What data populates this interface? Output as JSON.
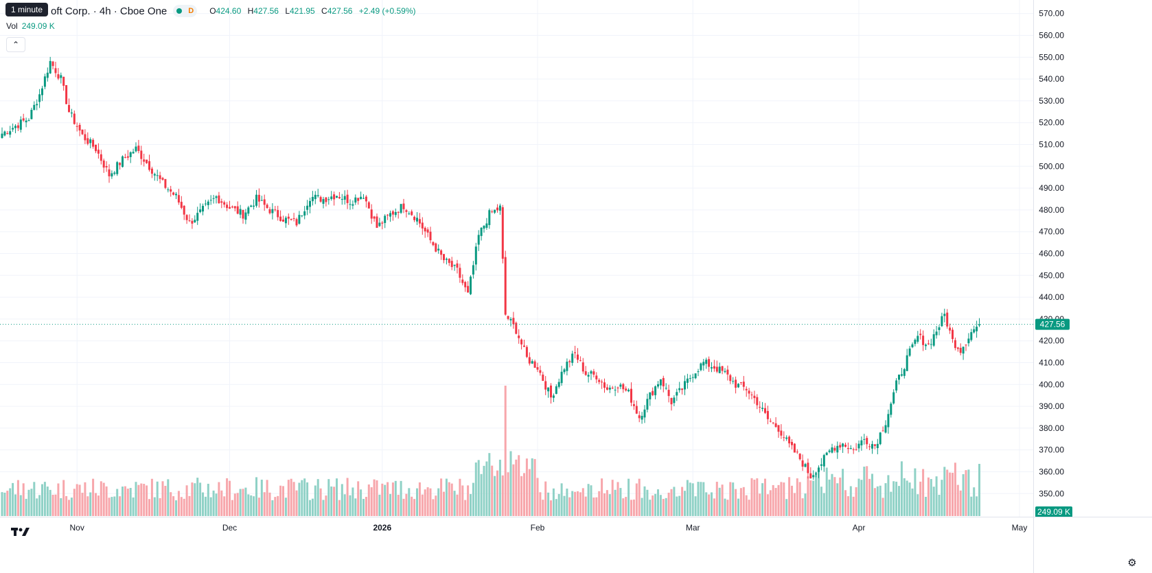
{
  "header": {
    "symbol_title": "oft Corp. · 4h · Cboe One",
    "interval_tooltip": "1 minute",
    "market_status_letter": "D",
    "ohlc": {
      "o_label": "O",
      "o": "424.60",
      "h_label": "H",
      "h": "427.56",
      "l_label": "L",
      "l": "421.95",
      "c_label": "C",
      "c": "427.56",
      "change": "+2.49 (+0.59%)"
    },
    "volume_label": "Vol",
    "volume_value": "249.09 K"
  },
  "icons": {
    "collapse": "chevron-up-icon",
    "logo": "tradingview-logo",
    "settings": "gear-icon"
  },
  "colors": {
    "up": "#089981",
    "down": "#f23645",
    "up_volume": "#8fd1c6",
    "down_volume": "#f7a6ab",
    "grid": "#f0f3fa",
    "axis_text": "#131722"
  },
  "chart_data": {
    "type": "candlestick",
    "series_name": "",
    "price_axis": {
      "ticks": [
        "570.00",
        "560.00",
        "550.00",
        "540.00",
        "530.00",
        "520.00",
        "510.00",
        "500.00",
        "490.00",
        "480.00",
        "470.00",
        "460.00",
        "450.00",
        "440.00",
        "430.00",
        "420.00",
        "410.00",
        "400.00",
        "390.00",
        "380.00",
        "370.00",
        "360.00",
        "350.00"
      ],
      "ylim": [
        346,
        574
      ],
      "last_price_label": "427.56",
      "volume_label": "249.09 K"
    },
    "time_axis": {
      "labels": [
        "Nov",
        "Dec",
        "2026",
        "Feb",
        "Mar",
        "Apr",
        "May"
      ],
      "bold_label": "2026",
      "label_index": [
        28,
        85,
        142,
        200,
        258,
        320,
        380
      ]
    },
    "grid": true,
    "candle_count": 382,
    "anchors": [
      {
        "i": 0,
        "close": 515
      },
      {
        "i": 10,
        "close": 522
      },
      {
        "i": 14,
        "close": 533
      },
      {
        "i": 18,
        "close": 548
      },
      {
        "i": 22,
        "close": 540
      },
      {
        "i": 25,
        "close": 525
      },
      {
        "i": 30,
        "close": 514
      },
      {
        "i": 35,
        "close": 508
      },
      {
        "i": 40,
        "close": 496
      },
      {
        "i": 45,
        "close": 503
      },
      {
        "i": 50,
        "close": 508
      },
      {
        "i": 55,
        "close": 500
      },
      {
        "i": 60,
        "close": 492
      },
      {
        "i": 65,
        "close": 486
      },
      {
        "i": 70,
        "close": 474
      },
      {
        "i": 75,
        "close": 480
      },
      {
        "i": 80,
        "close": 486
      },
      {
        "i": 85,
        "close": 481
      },
      {
        "i": 90,
        "close": 478
      },
      {
        "i": 95,
        "close": 485
      },
      {
        "i": 100,
        "close": 480
      },
      {
        "i": 105,
        "close": 476
      },
      {
        "i": 110,
        "close": 474
      },
      {
        "i": 115,
        "close": 486
      },
      {
        "i": 120,
        "close": 485
      },
      {
        "i": 125,
        "close": 487
      },
      {
        "i": 130,
        "close": 484
      },
      {
        "i": 135,
        "close": 487
      },
      {
        "i": 140,
        "close": 472
      },
      {
        "i": 145,
        "close": 478
      },
      {
        "i": 150,
        "close": 482
      },
      {
        "i": 155,
        "close": 476
      },
      {
        "i": 160,
        "close": 466
      },
      {
        "i": 165,
        "close": 457
      },
      {
        "i": 170,
        "close": 452
      },
      {
        "i": 174,
        "close": 441
      },
      {
        "i": 178,
        "close": 468
      },
      {
        "i": 182,
        "close": 478
      },
      {
        "i": 186,
        "close": 481
      },
      {
        "i": 188,
        "close": 432
      },
      {
        "i": 192,
        "close": 425
      },
      {
        "i": 196,
        "close": 412
      },
      {
        "i": 200,
        "close": 408
      },
      {
        "i": 205,
        "close": 394
      },
      {
        "i": 210,
        "close": 408
      },
      {
        "i": 214,
        "close": 414
      },
      {
        "i": 218,
        "close": 405
      },
      {
        "i": 222,
        "close": 404
      },
      {
        "i": 226,
        "close": 398
      },
      {
        "i": 230,
        "close": 400
      },
      {
        "i": 234,
        "close": 396
      },
      {
        "i": 238,
        "close": 385
      },
      {
        "i": 242,
        "close": 395
      },
      {
        "i": 246,
        "close": 403
      },
      {
        "i": 250,
        "close": 392
      },
      {
        "i": 254,
        "close": 398
      },
      {
        "i": 258,
        "close": 405
      },
      {
        "i": 262,
        "close": 410
      },
      {
        "i": 266,
        "close": 408
      },
      {
        "i": 270,
        "close": 405
      },
      {
        "i": 274,
        "close": 400
      },
      {
        "i": 278,
        "close": 398
      },
      {
        "i": 282,
        "close": 392
      },
      {
        "i": 286,
        "close": 384
      },
      {
        "i": 290,
        "close": 380
      },
      {
        "i": 294,
        "close": 372
      },
      {
        "i": 298,
        "close": 366
      },
      {
        "i": 302,
        "close": 358
      },
      {
        "i": 306,
        "close": 364
      },
      {
        "i": 310,
        "close": 371
      },
      {
        "i": 314,
        "close": 373
      },
      {
        "i": 318,
        "close": 370
      },
      {
        "i": 322,
        "close": 375
      },
      {
        "i": 326,
        "close": 372
      },
      {
        "i": 330,
        "close": 383
      },
      {
        "i": 334,
        "close": 400
      },
      {
        "i": 338,
        "close": 412
      },
      {
        "i": 342,
        "close": 422
      },
      {
        "i": 346,
        "close": 418
      },
      {
        "i": 350,
        "close": 427
      },
      {
        "i": 352,
        "close": 432
      },
      {
        "i": 355,
        "close": 420
      },
      {
        "i": 358,
        "close": 416
      },
      {
        "i": 362,
        "close": 424
      },
      {
        "i": 365,
        "close": 427.56
      }
    ],
    "volume_spike": {
      "i": 188,
      "relative": 1.0
    }
  }
}
